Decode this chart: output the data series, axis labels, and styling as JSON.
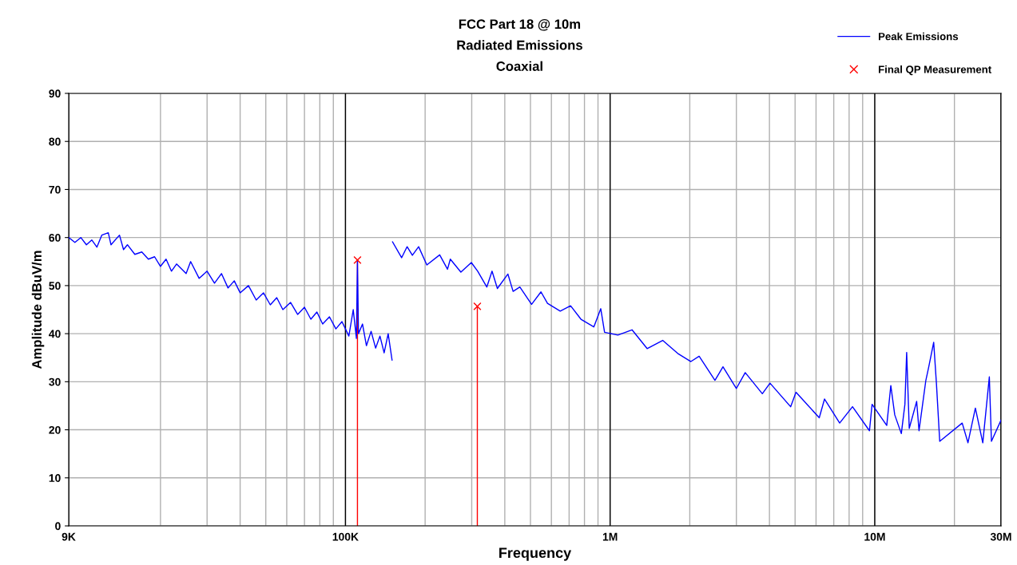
{
  "chart_data": {
    "type": "line",
    "title": "FCC Part 18 @ 10m\nRadiated Emissions\nCoaxial",
    "xlabel": "Frequency",
    "ylabel": "Amplitude dBuV/m",
    "log": "x",
    "xlim": [
      9000,
      30000000
    ],
    "ylim": [
      0,
      90
    ],
    "xticks": [
      {
        "value": 9000,
        "label": "9K"
      },
      {
        "value": 20000,
        "label": null
      },
      {
        "value": 30000,
        "label": null
      },
      {
        "value": 40000,
        "label": null
      },
      {
        "value": 50000,
        "label": null
      },
      {
        "value": 60000,
        "label": null
      },
      {
        "value": 70000,
        "label": null
      },
      {
        "value": 80000,
        "label": null
      },
      {
        "value": 90000,
        "label": null
      },
      {
        "value": 100000,
        "label": "100K"
      },
      {
        "value": 200000,
        "label": null
      },
      {
        "value": 300000,
        "label": null
      },
      {
        "value": 400000,
        "label": null
      },
      {
        "value": 500000,
        "label": null
      },
      {
        "value": 600000,
        "label": null
      },
      {
        "value": 700000,
        "label": null
      },
      {
        "value": 800000,
        "label": null
      },
      {
        "value": 900000,
        "label": null
      },
      {
        "value": 1000000,
        "label": "1M"
      },
      {
        "value": 2000000,
        "label": null
      },
      {
        "value": 3000000,
        "label": null
      },
      {
        "value": 4000000,
        "label": null
      },
      {
        "value": 5000000,
        "label": null
      },
      {
        "value": 6000000,
        "label": null
      },
      {
        "value": 7000000,
        "label": null
      },
      {
        "value": 8000000,
        "label": null
      },
      {
        "value": 9000000,
        "label": null
      },
      {
        "value": 10000000,
        "label": "10M"
      },
      {
        "value": 20000000,
        "label": null
      },
      {
        "value": 30000000,
        "label": "30M"
      }
    ],
    "yticks": [
      0,
      10,
      20,
      30,
      40,
      50,
      60,
      70,
      80,
      90
    ],
    "grid": true,
    "legend": "top right",
    "series": [
      {
        "name": "Peak Emissions",
        "color": "#0000ff",
        "marker": "none",
        "x": [
          9000,
          9500,
          10000,
          10500,
          11000,
          11500,
          12000,
          12700,
          13000,
          14000,
          14500,
          15000,
          16000,
          17000,
          18000,
          19000,
          20000,
          21000,
          22000,
          23000,
          25000,
          26000,
          28000,
          30000,
          32000,
          34000,
          36000,
          38000,
          40000,
          43000,
          46000,
          49000,
          52000,
          55000,
          58000,
          62000,
          66000,
          70000,
          74000,
          78000,
          82000,
          87000,
          92000,
          97000,
          103000,
          107000,
          110000,
          111000,
          112000,
          116000,
          120000,
          125000,
          130000,
          135000,
          140000,
          145000,
          150000,
          150500,
          150600,
          163000,
          171000,
          179000,
          189000,
          203000,
          227000,
          243000,
          249000,
          273000,
          299000,
          316000,
          342000,
          358000,
          375000,
          411000,
          430000,
          456000,
          505000,
          548000,
          580000,
          648000,
          709000,
          776000,
          868000,
          922000,
          953000,
          1070000,
          1210000,
          1380000,
          1580000,
          1800000,
          2020000,
          2170000,
          2490000,
          2670000,
          3000000,
          3240000,
          3760000,
          4020000,
          4810000,
          5040000,
          6170000,
          6460000,
          7370000,
          8240000,
          9550000,
          9770000,
          11100000,
          11500000,
          11900000,
          12600000,
          13000000,
          13200000,
          13500000,
          14400000,
          14700000,
          15600000,
          16000000,
          16700000,
          17100000,
          17600000,
          21400000,
          22500000,
          24000000,
          25600000,
          27100000,
          27600000,
          30000000
        ],
        "values": [
          60,
          59,
          60,
          58.5,
          59.5,
          58,
          60.5,
          61,
          58.5,
          60.5,
          57.5,
          58.5,
          56.5,
          57,
          55.5,
          56,
          54,
          55.5,
          53,
          54.5,
          52.5,
          55,
          51.5,
          53,
          50.5,
          52.5,
          49.5,
          51,
          48.5,
          50,
          47,
          48.5,
          46,
          47.5,
          45,
          46.5,
          44,
          45.5,
          43,
          44.5,
          42,
          43.5,
          41,
          42.5,
          39.5,
          45,
          39,
          55,
          40,
          42,
          37.5,
          40.5,
          37,
          39.5,
          36,
          40,
          34.5,
          null,
          59.1,
          55.8,
          58.1,
          56.3,
          58.1,
          54.3,
          56.4,
          53.4,
          55.5,
          52.8,
          54.8,
          53,
          49.7,
          53,
          49.4,
          52.4,
          48.8,
          49.7,
          46.1,
          48.7,
          46.3,
          44.7,
          45.8,
          43,
          41.4,
          45.2,
          40.3,
          39.7,
          40.8,
          36.9,
          38.6,
          35.9,
          34.2,
          35.3,
          30.3,
          33.1,
          28.6,
          31.9,
          27.5,
          29.7,
          24.8,
          27.8,
          22.5,
          26.4,
          21.4,
          24.8,
          19.8,
          25.3,
          20.9,
          29.2,
          23.1,
          19.2,
          25.3,
          36.1,
          20.3,
          25.9,
          19.8,
          30.3,
          33.1,
          38.2,
          29.7,
          17.6,
          21.4,
          17.3,
          24.5,
          17.3,
          31,
          17.6,
          22
        ]
      },
      {
        "name": "Final QP Measurement",
        "type": "lollipop",
        "color": "#ff0000",
        "marker": "cross",
        "x": [
          111000,
          315000
        ],
        "values": [
          55.3,
          45.7
        ]
      }
    ]
  }
}
